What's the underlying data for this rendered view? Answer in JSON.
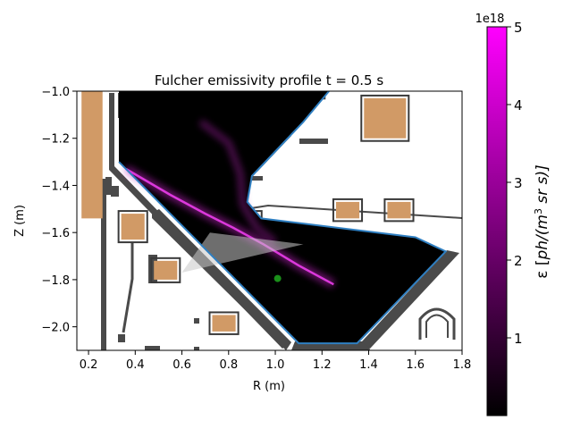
{
  "chart_data": {
    "type": "heatmap",
    "title": "Fulcher emissivity profile t = 0.5 s",
    "xlabel": "R (m)",
    "ylabel": "Z (m)",
    "xlim": [
      0.15,
      1.8
    ],
    "ylim": [
      -2.1,
      -1.0
    ],
    "xticks": [
      0.2,
      0.4,
      0.6,
      0.8,
      1.0,
      1.2,
      1.4,
      1.6,
      1.8
    ],
    "xtick_labels": [
      "0.2",
      "0.4",
      "0.6",
      "0.8",
      "1.0",
      "1.2",
      "1.4",
      "1.6",
      "1.8"
    ],
    "yticks": [
      -1.0,
      -1.2,
      -1.4,
      -1.6,
      -1.8,
      -2.0
    ],
    "ytick_labels": [
      "−1.0",
      "−1.2",
      "−1.4",
      "−1.6",
      "−1.8",
      "−2.0"
    ],
    "colorbar": {
      "label": "ε [ph/(m³ sr s)]",
      "label_pre": "ε [",
      "label_ph": "ph/(",
      "label_m": "m",
      "label_exp": "3",
      "label_post": " sr s)]",
      "scale_label": "1e18",
      "range": [
        0,
        5
      ],
      "ticks": [
        1,
        2,
        3,
        4,
        5
      ],
      "tick_labels": [
        "1",
        "2",
        "3",
        "4",
        "5"
      ],
      "colors": [
        "#000000",
        "#ff00ff"
      ]
    },
    "colors": {
      "vessel_wall": "#4a4a4a",
      "coil": "#d19a66",
      "boundary": "#2f7fc1",
      "marker": "#1a8f1a"
    },
    "divertor_region": [
      [
        0.33,
        -1.0
      ],
      [
        0.33,
        -1.3
      ],
      [
        1.1,
        -2.07
      ],
      [
        1.35,
        -2.07
      ],
      [
        1.73,
        -1.68
      ],
      [
        1.6,
        -1.62
      ],
      [
        0.94,
        -1.54
      ],
      [
        0.88,
        -1.47
      ],
      [
        0.9,
        -1.36
      ],
      [
        1.12,
        -1.13
      ],
      [
        1.23,
        -1.0
      ]
    ],
    "emission_band": [
      [
        0.36,
        -1.33
      ],
      [
        0.55,
        -1.44
      ],
      [
        0.7,
        -1.52
      ],
      [
        0.82,
        -1.58
      ],
      [
        0.95,
        -1.65
      ],
      [
        1.1,
        -1.74
      ],
      [
        1.25,
        -1.82
      ]
    ],
    "emission_band2": [
      [
        0.68,
        -1.13
      ],
      [
        0.8,
        -1.22
      ],
      [
        0.85,
        -1.35
      ],
      [
        0.86,
        -1.48
      ],
      [
        0.92,
        -1.58
      ],
      [
        1.0,
        -1.64
      ]
    ],
    "view_cone": [
      [
        0.72,
        -1.6
      ],
      [
        1.12,
        -1.65
      ],
      [
        0.6,
        -1.77
      ]
    ],
    "marker_point": [
      1.01,
      -1.795
    ],
    "coils": [
      [
        0.17,
        -1.0,
        0.09,
        0.54
      ],
      [
        0.34,
        -1.52,
        0.1,
        0.11
      ],
      [
        0.48,
        -1.72,
        0.1,
        0.08
      ],
      [
        0.84,
        -1.52,
        0.09,
        0.07
      ],
      [
        1.26,
        -1.47,
        0.1,
        0.07
      ],
      [
        1.48,
        -1.47,
        0.1,
        0.07
      ],
      [
        1.38,
        -1.03,
        0.18,
        0.17
      ],
      [
        0.73,
        -1.95,
        0.1,
        0.07
      ],
      [
        1.1,
        -0.98,
        0.1,
        0.04
      ]
    ]
  }
}
